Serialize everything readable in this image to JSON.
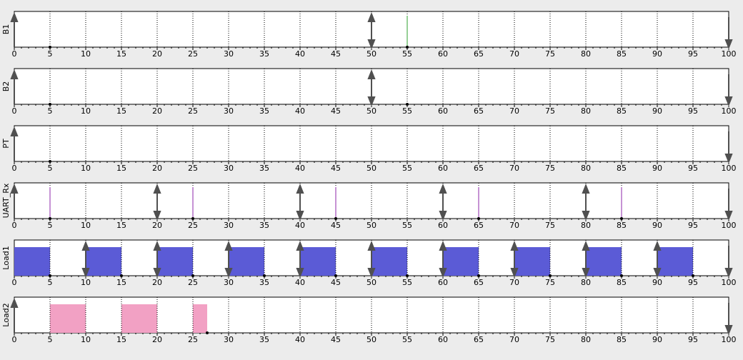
{
  "colors": {
    "background": "#ececec",
    "plot_bg": "#ffffff",
    "axis": "#000000",
    "gridline": "#000000",
    "arrow": "#505050",
    "green_marker": "#2ca02c",
    "purple_marker": "#8e24aa",
    "load1_fill": "#5b5bd6",
    "load2_fill": "#f2a1c4"
  },
  "chart_data": [
    {
      "type": "timeline",
      "ylabel": "B1",
      "xlim": [
        0,
        100
      ],
      "xticks": [
        0,
        5,
        10,
        15,
        20,
        25,
        30,
        35,
        40,
        45,
        50,
        55,
        60,
        65,
        70,
        75,
        80,
        85,
        90,
        95,
        100
      ],
      "grid": true,
      "events": {
        "up": [
          0
        ],
        "updown": [
          50
        ],
        "down": [
          100
        ],
        "dots": [
          5,
          55
        ]
      },
      "markers": [
        {
          "x": 55,
          "color": "green"
        }
      ],
      "bars": []
    },
    {
      "type": "timeline",
      "ylabel": "B2",
      "xlim": [
        0,
        100
      ],
      "xticks": [
        0,
        5,
        10,
        15,
        20,
        25,
        30,
        35,
        40,
        45,
        50,
        55,
        60,
        65,
        70,
        75,
        80,
        85,
        90,
        95,
        100
      ],
      "grid": true,
      "events": {
        "up": [
          0
        ],
        "updown": [
          50
        ],
        "down": [
          100
        ],
        "dots": [
          5,
          55
        ]
      },
      "markers": [],
      "bars": []
    },
    {
      "type": "timeline",
      "ylabel": "PT",
      "xlim": [
        0,
        100
      ],
      "xticks": [
        0,
        5,
        10,
        15,
        20,
        25,
        30,
        35,
        40,
        45,
        50,
        55,
        60,
        65,
        70,
        75,
        80,
        85,
        90,
        95,
        100
      ],
      "grid": true,
      "events": {
        "up": [
          0
        ],
        "updown": [],
        "down": [
          100
        ],
        "dots": [
          5
        ]
      },
      "markers": [],
      "bars": []
    },
    {
      "type": "timeline",
      "ylabel": "UART_Rx",
      "xlim": [
        0,
        100
      ],
      "xticks": [
        0,
        5,
        10,
        15,
        20,
        25,
        30,
        35,
        40,
        45,
        50,
        55,
        60,
        65,
        70,
        75,
        80,
        85,
        90,
        95,
        100
      ],
      "grid": true,
      "events": {
        "up": [
          0
        ],
        "updown": [
          20,
          40,
          60,
          80
        ],
        "down": [
          100
        ],
        "dots": [
          5,
          25,
          45,
          65,
          85
        ]
      },
      "markers": [
        {
          "x": 5,
          "color": "purple"
        },
        {
          "x": 25,
          "color": "purple"
        },
        {
          "x": 45,
          "color": "purple"
        },
        {
          "x": 65,
          "color": "purple"
        },
        {
          "x": 85,
          "color": "purple"
        }
      ],
      "bars": []
    },
    {
      "type": "timeline",
      "ylabel": "Load1",
      "xlim": [
        0,
        100
      ],
      "xticks": [
        0,
        5,
        10,
        15,
        20,
        25,
        30,
        35,
        40,
        45,
        50,
        55,
        60,
        65,
        70,
        75,
        80,
        85,
        90,
        95,
        100
      ],
      "grid": true,
      "events": {
        "up": [],
        "updown": [
          10,
          20,
          30,
          40,
          50,
          60,
          70,
          80,
          90
        ],
        "down": [
          100
        ],
        "dots": [
          5,
          15,
          25,
          35,
          45,
          55,
          65,
          75,
          85,
          95
        ]
      },
      "markers": [],
      "bars": [
        {
          "start": 0,
          "end": 5,
          "color": "blue"
        },
        {
          "start": 10,
          "end": 15,
          "color": "blue"
        },
        {
          "start": 20,
          "end": 25,
          "color": "blue"
        },
        {
          "start": 30,
          "end": 35,
          "color": "blue"
        },
        {
          "start": 40,
          "end": 45,
          "color": "blue"
        },
        {
          "start": 50,
          "end": 55,
          "color": "blue"
        },
        {
          "start": 60,
          "end": 65,
          "color": "blue"
        },
        {
          "start": 70,
          "end": 75,
          "color": "blue"
        },
        {
          "start": 80,
          "end": 85,
          "color": "blue"
        },
        {
          "start": 90,
          "end": 95,
          "color": "blue"
        }
      ]
    },
    {
      "type": "timeline",
      "ylabel": "Load2",
      "xlim": [
        0,
        100
      ],
      "xticks": [
        0,
        5,
        10,
        15,
        20,
        25,
        30,
        35,
        40,
        45,
        50,
        55,
        60,
        65,
        70,
        75,
        80,
        85,
        90,
        95,
        100
      ],
      "grid": true,
      "events": {
        "up": [
          0
        ],
        "updown": [],
        "down": [
          100
        ],
        "dots": [
          27
        ]
      },
      "markers": [],
      "bars": [
        {
          "start": 5,
          "end": 10,
          "color": "pink"
        },
        {
          "start": 15,
          "end": 20,
          "color": "pink"
        },
        {
          "start": 25,
          "end": 27,
          "color": "pink"
        }
      ]
    }
  ]
}
